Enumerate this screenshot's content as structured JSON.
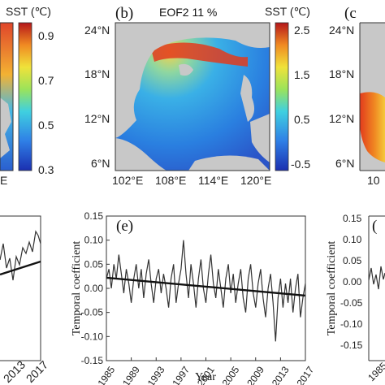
{
  "panel_b": {
    "label": "(b)",
    "title": "EOF2 11 %",
    "lat_ticks": [
      "24°N",
      "18°N",
      "12°N",
      "6°N"
    ],
    "lon_ticks": [
      "102°E",
      "108°E",
      "114°E",
      "120°E"
    ],
    "colorbar_title": "SST (℃)",
    "colorbar_ticks": [
      "2.5",
      "1.5",
      "0.5",
      "-0.5"
    ]
  },
  "panel_a_partial": {
    "colorbar_title": "SST (℃)",
    "colorbar_ticks": [
      "0.9",
      "0.7",
      "0.5",
      "0.3"
    ],
    "lon_tick_fragment": "E"
  },
  "panel_c_partial": {
    "label": "(c",
    "lat_ticks": [
      "24°N",
      "18°N",
      "12°N",
      "6°N"
    ],
    "lon_tick_fragment": "10"
  },
  "panel_d_partial": {
    "x_ticks": [
      "9",
      "2013",
      "2017"
    ]
  },
  "panel_f_partial": {
    "label": "(",
    "ylabel": "Temporal coefficient",
    "y_ticks": [
      "0.15",
      "0.10",
      "0.05",
      "0.00",
      "-0.05",
      "-0.10",
      "-0.15"
    ],
    "x_tick_fragment": "1985"
  },
  "colors": {
    "sea_low": "#1f4fd6",
    "sea_mid": "#3aa8e8",
    "sea_high": "#e23b1d",
    "land": "#c8c8c8",
    "line": "#333333"
  },
  "chart_data": {
    "type": "line",
    "label": "(e)",
    "xlabel": "Year",
    "ylabel": "Temporal coefficient",
    "xlim": [
      1985,
      2017
    ],
    "ylim": [
      -0.15,
      0.15
    ],
    "x_ticks": [
      "1985",
      "1989",
      "1993",
      "1997",
      "2001",
      "2005",
      "2009",
      "2013",
      "2017"
    ],
    "y_ticks": [
      "0.15",
      "0.10",
      "0.05",
      "0.00",
      "-0.05",
      "-0.10",
      "-0.15"
    ],
    "series": [
      {
        "values": [
          [
            1985.0,
            0.02
          ],
          [
            1985.4,
            0.04
          ],
          [
            1985.8,
            0.0
          ],
          [
            1986.2,
            0.05
          ],
          [
            1986.6,
            0.02
          ],
          [
            1987.0,
            0.07
          ],
          [
            1987.4,
            0.03
          ],
          [
            1987.8,
            -0.01
          ],
          [
            1988.2,
            0.04
          ],
          [
            1988.6,
            0.01
          ],
          [
            1989.0,
            -0.03
          ],
          [
            1989.4,
            0.02
          ],
          [
            1989.8,
            0.05
          ],
          [
            1990.2,
            0.0
          ],
          [
            1990.6,
            0.04
          ],
          [
            1991.0,
            -0.02
          ],
          [
            1991.4,
            0.03
          ],
          [
            1991.8,
            0.06
          ],
          [
            1992.2,
            0.01
          ],
          [
            1992.6,
            -0.03
          ],
          [
            1993.0,
            0.02
          ],
          [
            1993.4,
            0.04
          ],
          [
            1993.8,
            -0.01
          ],
          [
            1994.2,
            0.03
          ],
          [
            1994.6,
            0.0
          ],
          [
            1995.0,
            -0.04
          ],
          [
            1995.4,
            0.02
          ],
          [
            1995.8,
            0.05
          ],
          [
            1996.2,
            -0.03
          ],
          [
            1996.6,
            0.01
          ],
          [
            1997.0,
            0.04
          ],
          [
            1997.4,
            0.1
          ],
          [
            1997.8,
            0.03
          ],
          [
            1998.2,
            -0.02
          ],
          [
            1998.6,
            0.05
          ],
          [
            1999.0,
            0.01
          ],
          [
            1999.4,
            -0.04
          ],
          [
            1999.8,
            0.02
          ],
          [
            2000.2,
            0.06
          ],
          [
            2000.6,
            0.0
          ],
          [
            2001.0,
            -0.03
          ],
          [
            2001.4,
            0.03
          ],
          [
            2001.8,
            0.07
          ],
          [
            2002.2,
            0.01
          ],
          [
            2002.6,
            -0.02
          ],
          [
            2003.0,
            0.04
          ],
          [
            2003.4,
            0.0
          ],
          [
            2003.8,
            -0.04
          ],
          [
            2004.2,
            0.02
          ],
          [
            2004.6,
            0.05
          ],
          [
            2005.0,
            -0.01
          ],
          [
            2005.4,
            0.03
          ],
          [
            2005.8,
            -0.03
          ],
          [
            2006.2,
            0.01
          ],
          [
            2006.6,
            0.04
          ],
          [
            2007.0,
            -0.02
          ],
          [
            2007.4,
            -0.05
          ],
          [
            2007.8,
            0.02
          ],
          [
            2008.2,
            0.05
          ],
          [
            2008.6,
            -0.01
          ],
          [
            2009.0,
            -0.04
          ],
          [
            2009.4,
            0.01
          ],
          [
            2009.8,
            0.04
          ],
          [
            2010.2,
            -0.02
          ],
          [
            2010.6,
            -0.06
          ],
          [
            2011.0,
            0.0
          ],
          [
            2011.4,
            0.03
          ],
          [
            2011.8,
            -0.03
          ],
          [
            2012.2,
            -0.11
          ],
          [
            2012.6,
            -0.02
          ],
          [
            2013.0,
            0.02
          ],
          [
            2013.4,
            -0.04
          ],
          [
            2013.8,
            0.01
          ],
          [
            2014.2,
            -0.03
          ],
          [
            2014.6,
            0.02
          ],
          [
            2015.0,
            -0.05
          ],
          [
            2015.4,
            0.0
          ],
          [
            2015.8,
            0.03
          ],
          [
            2016.2,
            -0.06
          ],
          [
            2016.6,
            -0.02
          ],
          [
            2017.0,
            0.01
          ]
        ]
      },
      {
        "type": "trend",
        "values": [
          [
            1985,
            0.022
          ],
          [
            2017,
            -0.015
          ]
        ]
      }
    ]
  }
}
